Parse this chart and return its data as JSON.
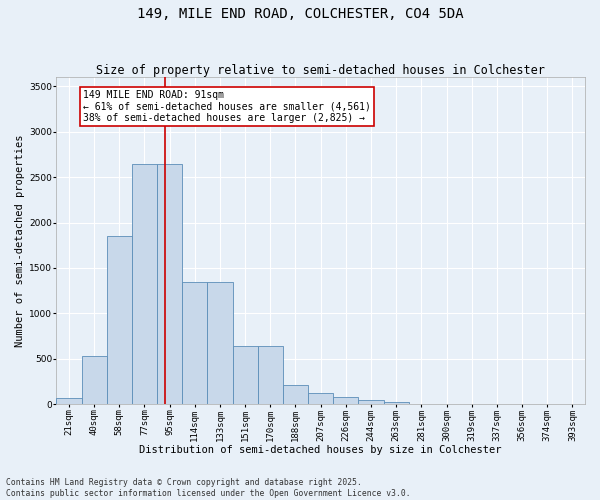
{
  "title1": "149, MILE END ROAD, COLCHESTER, CO4 5DA",
  "title2": "Size of property relative to semi-detached houses in Colchester",
  "xlabel": "Distribution of semi-detached houses by size in Colchester",
  "ylabel": "Number of semi-detached properties",
  "categories": [
    "21sqm",
    "40sqm",
    "58sqm",
    "77sqm",
    "95sqm",
    "114sqm",
    "133sqm",
    "151sqm",
    "170sqm",
    "188sqm",
    "207sqm",
    "226sqm",
    "244sqm",
    "263sqm",
    "281sqm",
    "300sqm",
    "319sqm",
    "337sqm",
    "356sqm",
    "374sqm",
    "393sqm"
  ],
  "values": [
    75,
    530,
    1850,
    2640,
    2640,
    1350,
    1350,
    640,
    640,
    210,
    130,
    80,
    50,
    30,
    10,
    5,
    3,
    2,
    1,
    1,
    1
  ],
  "bar_color": "#c8d8ea",
  "bar_edge_color": "#5b8db8",
  "red_line_label": "149 MILE END ROAD: 91sqm",
  "annotation_smaller": "← 61% of semi-detached houses are smaller (4,561)",
  "annotation_larger": "38% of semi-detached houses are larger (2,825) →",
  "annotation_box_color": "#ffffff",
  "annotation_box_edge": "#cc0000",
  "ylim": [
    0,
    3600
  ],
  "yticks": [
    0,
    500,
    1000,
    1500,
    2000,
    2500,
    3000,
    3500
  ],
  "background_color": "#e8f0f8",
  "grid_color": "#ffffff",
  "footer1": "Contains HM Land Registry data © Crown copyright and database right 2025.",
  "footer2": "Contains public sector information licensed under the Open Government Licence v3.0.",
  "title_fontsize": 10,
  "subtitle_fontsize": 8.5,
  "axis_label_fontsize": 7.5,
  "tick_fontsize": 6.5,
  "footer_fontsize": 5.8,
  "annotation_fontsize": 7.0
}
